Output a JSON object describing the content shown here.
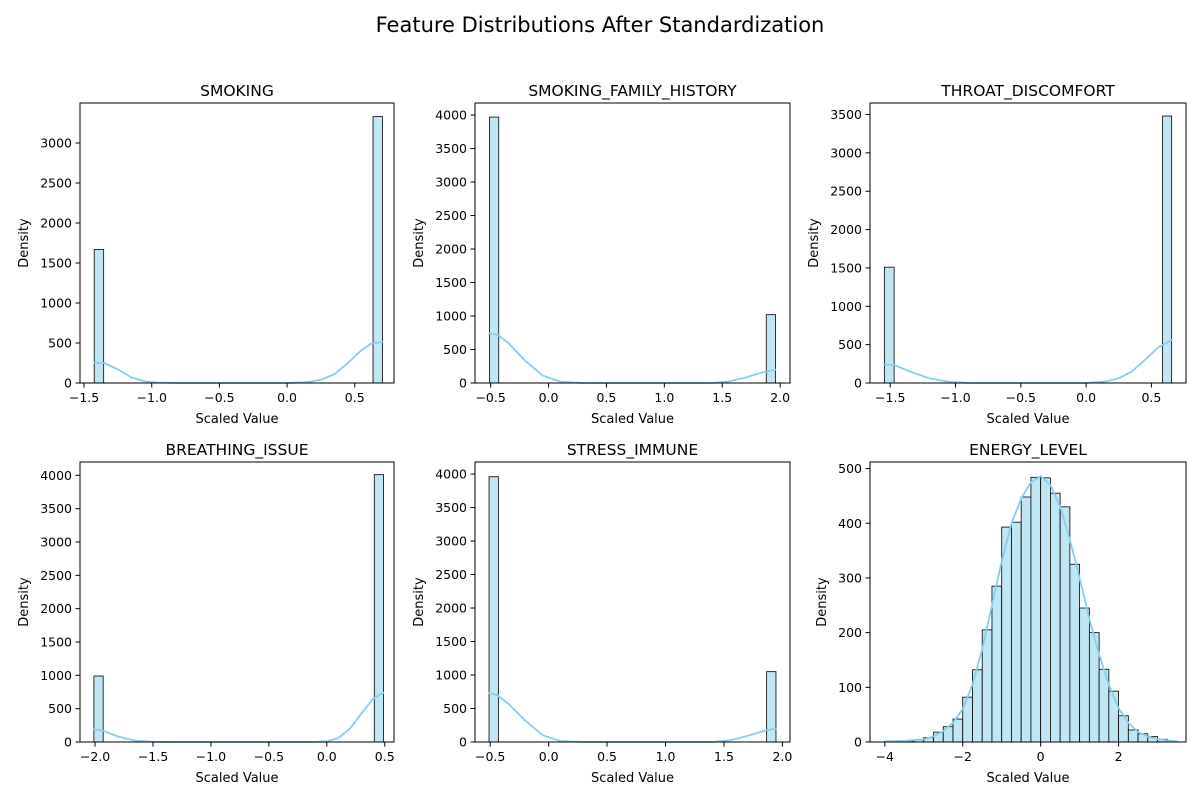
{
  "figure": {
    "title": "Feature Distributions After Standardization",
    "bar_color": "#bfe6f2",
    "bar_edge": "#000000",
    "kde_color": "#87ceeb"
  },
  "chart_data": [
    {
      "type": "bar",
      "title": "SMOKING",
      "xlabel": "Scaled Value",
      "ylabel": "Density",
      "xlim": [
        -1.53,
        0.79
      ],
      "ylim": [
        0,
        3500
      ],
      "xticks": [
        -1.5,
        -1.0,
        -0.5,
        0.0,
        0.5
      ],
      "xtick_labels": [
        "−1.5",
        "−1.0",
        "−0.5",
        "0.0",
        "0.5"
      ],
      "yticks": [
        0,
        500,
        1000,
        1500,
        2000,
        2500,
        3000
      ],
      "ytick_labels": [
        "0",
        "500",
        "1000",
        "1500",
        "2000",
        "2500",
        "3000"
      ],
      "bins": [
        {
          "x0": -1.425,
          "x1": -1.355,
          "v": 1670
        },
        {
          "x0": 0.635,
          "x1": 0.705,
          "v": 3330
        }
      ],
      "kde": [
        [
          -1.425,
          255
        ],
        [
          -1.35,
          250
        ],
        [
          -1.25,
          170
        ],
        [
          -1.15,
          70
        ],
        [
          -1.05,
          20
        ],
        [
          -0.95,
          5
        ],
        [
          -0.8,
          0
        ],
        [
          0.0,
          0
        ],
        [
          0.15,
          10
        ],
        [
          0.25,
          40
        ],
        [
          0.35,
          110
        ],
        [
          0.45,
          250
        ],
        [
          0.55,
          410
        ],
        [
          0.62,
          490
        ],
        [
          0.705,
          515
        ]
      ]
    },
    {
      "type": "bar",
      "title": "SMOKING_FAMILY_HISTORY",
      "xlabel": "Scaled Value",
      "ylabel": "Density",
      "xlim": [
        -0.635,
        2.085
      ],
      "ylim": [
        0,
        4180
      ],
      "xticks": [
        -0.5,
        0.0,
        0.5,
        1.0,
        1.5,
        2.0
      ],
      "xtick_labels": [
        "−0.5",
        "0.0",
        "0.5",
        "1.0",
        "1.5",
        "2.0"
      ],
      "yticks": [
        0,
        500,
        1000,
        1500,
        2000,
        2500,
        3000,
        3500,
        4000
      ],
      "ytick_labels": [
        "0",
        "500",
        "1000",
        "1500",
        "2000",
        "2500",
        "3000",
        "3500",
        "4000"
      ],
      "bins": [
        {
          "x0": -0.51,
          "x1": -0.43,
          "v": 3970
        },
        {
          "x0": 1.88,
          "x1": 1.96,
          "v": 1020
        }
      ],
      "kde": [
        [
          -0.51,
          740
        ],
        [
          -0.44,
          720
        ],
        [
          -0.35,
          600
        ],
        [
          -0.2,
          330
        ],
        [
          -0.05,
          110
        ],
        [
          0.1,
          20
        ],
        [
          0.3,
          0
        ],
        [
          1.4,
          0
        ],
        [
          1.55,
          20
        ],
        [
          1.7,
          80
        ],
        [
          1.85,
          160
        ],
        [
          1.96,
          200
        ]
      ]
    },
    {
      "type": "bar",
      "title": "THROAT_DISCOMFORT",
      "xlabel": "Scaled Value",
      "ylabel": "Density",
      "xlim": [
        -1.655,
        0.765
      ],
      "ylim": [
        0,
        3650
      ],
      "xticks": [
        -1.5,
        -1.0,
        -0.5,
        0.0,
        0.5
      ],
      "xtick_labels": [
        "−1.5",
        "−1.0",
        "−0.5",
        "0.0",
        "0.5"
      ],
      "yticks": [
        0,
        500,
        1000,
        1500,
        2000,
        2500,
        3000,
        3500
      ],
      "ytick_labels": [
        "0",
        "500",
        "1000",
        "1500",
        "2000",
        "2500",
        "3000",
        "3500"
      ],
      "bins": [
        {
          "x0": -1.545,
          "x1": -1.47,
          "v": 1510
        },
        {
          "x0": 0.585,
          "x1": 0.655,
          "v": 3480
        }
      ],
      "kde": [
        [
          -1.545,
          240
        ],
        [
          -1.47,
          235
        ],
        [
          -1.35,
          150
        ],
        [
          -1.2,
          60
        ],
        [
          -1.05,
          15
        ],
        [
          -0.9,
          0
        ],
        [
          0.0,
          0
        ],
        [
          0.15,
          20
        ],
        [
          0.25,
          60
        ],
        [
          0.35,
          150
        ],
        [
          0.45,
          300
        ],
        [
          0.55,
          460
        ],
        [
          0.655,
          560
        ]
      ]
    },
    {
      "type": "bar",
      "title": "BREATHING_ISSUE",
      "xlabel": "Scaled Value",
      "ylabel": "Density",
      "xlim": [
        -2.13,
        0.58
      ],
      "ylim": [
        0,
        4200
      ],
      "xticks": [
        -2.0,
        -1.5,
        -1.0,
        -0.5,
        0.0,
        0.5
      ],
      "xtick_labels": [
        "−2.0",
        "−1.5",
        "−1.0",
        "−0.5",
        "0.0",
        "0.5"
      ],
      "yticks": [
        0,
        500,
        1000,
        1500,
        2000,
        2500,
        3000,
        3500,
        4000
      ],
      "ytick_labels": [
        "0",
        "500",
        "1000",
        "1500",
        "2000",
        "2500",
        "3000",
        "3500",
        "4000"
      ],
      "bins": [
        {
          "x0": -2.01,
          "x1": -1.93,
          "v": 990
        },
        {
          "x0": 0.41,
          "x1": 0.49,
          "v": 4010
        }
      ],
      "kde": [
        [
          -2.01,
          190
        ],
        [
          -1.93,
          170
        ],
        [
          -1.8,
          80
        ],
        [
          -1.65,
          20
        ],
        [
          -1.5,
          3
        ],
        [
          -1.3,
          0
        ],
        [
          -0.1,
          0
        ],
        [
          0.0,
          10
        ],
        [
          0.1,
          60
        ],
        [
          0.2,
          200
        ],
        [
          0.3,
          430
        ],
        [
          0.4,
          650
        ],
        [
          0.49,
          740
        ]
      ]
    },
    {
      "type": "bar",
      "title": "STRESS_IMMUNE",
      "xlabel": "Scaled Value",
      "ylabel": "Density",
      "xlim": [
        -0.63,
        2.065
      ],
      "ylim": [
        0,
        4180
      ],
      "xticks": [
        -0.5,
        0.0,
        0.5,
        1.0,
        1.5,
        2.0
      ],
      "xtick_labels": [
        "−0.5",
        "0.0",
        "0.5",
        "1.0",
        "1.5",
        "2.0"
      ],
      "yticks": [
        0,
        500,
        1000,
        1500,
        2000,
        2500,
        3000,
        3500,
        4000
      ],
      "ytick_labels": [
        "0",
        "500",
        "1000",
        "1500",
        "2000",
        "2500",
        "3000",
        "3500",
        "4000"
      ],
      "bins": [
        {
          "x0": -0.51,
          "x1": -0.43,
          "v": 3960
        },
        {
          "x0": 1.865,
          "x1": 1.945,
          "v": 1050
        }
      ],
      "kde": [
        [
          -0.51,
          730
        ],
        [
          -0.44,
          700
        ],
        [
          -0.35,
          580
        ],
        [
          -0.2,
          320
        ],
        [
          -0.05,
          100
        ],
        [
          0.1,
          15
        ],
        [
          0.3,
          0
        ],
        [
          1.4,
          0
        ],
        [
          1.55,
          25
        ],
        [
          1.7,
          90
        ],
        [
          1.85,
          170
        ],
        [
          1.945,
          200
        ]
      ]
    },
    {
      "type": "bar",
      "title": "ENERGY_LEVEL",
      "xlabel": "Scaled Value",
      "ylabel": "Density",
      "xlim": [
        -4.38,
        3.73
      ],
      "ylim": [
        0,
        512
      ],
      "xticks": [
        -4,
        -2,
        0,
        2
      ],
      "xtick_labels": [
        "−4",
        "−2",
        "0",
        "2"
      ],
      "yticks": [
        0,
        100,
        200,
        300,
        400,
        500
      ],
      "ytick_labels": [
        "0",
        "100",
        "200",
        "300",
        "400",
        "500"
      ],
      "bins": [
        {
          "x0": -4.0,
          "x1": -3.75,
          "v": 1
        },
        {
          "x0": -3.75,
          "x1": -3.5,
          "v": 1
        },
        {
          "x0": -3.5,
          "x1": -3.25,
          "v": 2
        },
        {
          "x0": -3.25,
          "x1": -3.0,
          "v": 4
        },
        {
          "x0": -3.0,
          "x1": -2.75,
          "v": 8
        },
        {
          "x0": -2.75,
          "x1": -2.5,
          "v": 18
        },
        {
          "x0": -2.5,
          "x1": -2.25,
          "v": 28
        },
        {
          "x0": -2.25,
          "x1": -2.0,
          "v": 42
        },
        {
          "x0": -2.0,
          "x1": -1.75,
          "v": 82
        },
        {
          "x0": -1.75,
          "x1": -1.5,
          "v": 132
        },
        {
          "x0": -1.5,
          "x1": -1.25,
          "v": 205
        },
        {
          "x0": -1.25,
          "x1": -1.0,
          "v": 285
        },
        {
          "x0": -1.0,
          "x1": -0.75,
          "v": 393
        },
        {
          "x0": -0.75,
          "x1": -0.5,
          "v": 402
        },
        {
          "x0": -0.5,
          "x1": -0.25,
          "v": 448
        },
        {
          "x0": -0.25,
          "x1": 0.0,
          "v": 484
        },
        {
          "x0": 0.0,
          "x1": 0.25,
          "v": 483
        },
        {
          "x0": 0.25,
          "x1": 0.5,
          "v": 455
        },
        {
          "x0": 0.5,
          "x1": 0.75,
          "v": 430
        },
        {
          "x0": 0.75,
          "x1": 1.0,
          "v": 325
        },
        {
          "x0": 1.0,
          "x1": 1.25,
          "v": 245
        },
        {
          "x0": 1.25,
          "x1": 1.5,
          "v": 200
        },
        {
          "x0": 1.5,
          "x1": 1.75,
          "v": 133
        },
        {
          "x0": 1.75,
          "x1": 2.0,
          "v": 93
        },
        {
          "x0": 2.0,
          "x1": 2.25,
          "v": 48
        },
        {
          "x0": 2.25,
          "x1": 2.5,
          "v": 22
        },
        {
          "x0": 2.5,
          "x1": 2.75,
          "v": 15
        },
        {
          "x0": 2.75,
          "x1": 3.0,
          "v": 10
        },
        {
          "x0": 3.0,
          "x1": 3.25,
          "v": 5
        },
        {
          "x0": 3.25,
          "x1": 3.5,
          "v": 2
        }
      ],
      "kde": [
        [
          -4.0,
          1
        ],
        [
          -3.5,
          2
        ],
        [
          -3.0,
          5
        ],
        [
          -2.75,
          10
        ],
        [
          -2.5,
          20
        ],
        [
          -2.25,
          35
        ],
        [
          -2.0,
          60
        ],
        [
          -1.75,
          105
        ],
        [
          -1.5,
          170
        ],
        [
          -1.25,
          250
        ],
        [
          -1.0,
          330
        ],
        [
          -0.75,
          400
        ],
        [
          -0.5,
          445
        ],
        [
          -0.25,
          475
        ],
        [
          0.0,
          486
        ],
        [
          0.25,
          470
        ],
        [
          0.5,
          430
        ],
        [
          0.75,
          370
        ],
        [
          1.0,
          300
        ],
        [
          1.25,
          225
        ],
        [
          1.5,
          160
        ],
        [
          1.75,
          105
        ],
        [
          2.0,
          62
        ],
        [
          2.25,
          35
        ],
        [
          2.5,
          18
        ],
        [
          2.75,
          10
        ],
        [
          3.0,
          5
        ],
        [
          3.5,
          1
        ]
      ]
    }
  ]
}
